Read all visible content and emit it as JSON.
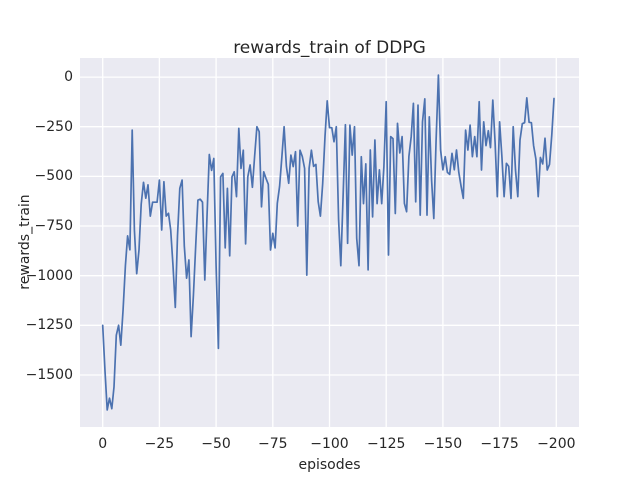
{
  "figure": {
    "title": "rewards_train of DDPG",
    "xlabel": "episodes",
    "ylabel": "rewards_train"
  },
  "chart_data": {
    "type": "line",
    "title": "rewards_train of DDPG",
    "xlabel": "episodes",
    "ylabel": "rewards_train",
    "legend_position": "none",
    "grid": true,
    "style": {
      "axes_bg": "#eaeaf2",
      "fig_bg": "#ffffff",
      "grid_color": "#ffffff",
      "text_color": "#262626",
      "line_color": "#4c72b0"
    },
    "xticks": [
      0,
      25,
      50,
      75,
      100,
      125,
      150,
      175,
      200
    ],
    "yticks": [
      0,
      -250,
      -500,
      -750,
      -1000,
      -1250,
      -1500
    ],
    "xlim": [
      -10,
      210
    ],
    "ylim": [
      -1762,
      96
    ],
    "x_start": 0,
    "x_step": 1,
    "series": [
      {
        "name": "rewards_train",
        "color": "#4c72b0",
        "values": [
          -1250,
          -1480,
          -1676,
          -1617,
          -1670,
          -1560,
          -1300,
          -1250,
          -1350,
          -1170,
          -950,
          -800,
          -870,
          -267,
          -770,
          -990,
          -870,
          -640,
          -530,
          -610,
          -543,
          -700,
          -630,
          -630,
          -630,
          -519,
          -770,
          -527,
          -700,
          -686,
          -770,
          -950,
          -1160,
          -800,
          -560,
          -519,
          -850,
          -1013,
          -921,
          -1307,
          -1100,
          -850,
          -620,
          -615,
          -630,
          -1022,
          -703,
          -390,
          -470,
          -410,
          -950,
          -1366,
          -502,
          -485,
          -860,
          -560,
          -900,
          -502,
          -477,
          -602,
          -258,
          -460,
          -368,
          -840,
          -502,
          -443,
          -555,
          -400,
          -250,
          -275,
          -653,
          -477,
          -510,
          -540,
          -871,
          -787,
          -860,
          -636,
          -550,
          -400,
          -250,
          -450,
          -535,
          -393,
          -451,
          -376,
          -750,
          -368,
          -400,
          -460,
          -997,
          -460,
          -368,
          -450,
          -440,
          -628,
          -700,
          -535,
          -300,
          -120,
          -255,
          -255,
          -326,
          -250,
          -720,
          -950,
          -600,
          -240,
          -837,
          -242,
          -393,
          -250,
          -812,
          -950,
          -401,
          -637,
          -437,
          -971,
          -367,
          -704,
          -317,
          -637,
          -467,
          -637,
          -450,
          -124,
          -896,
          -300,
          -310,
          -687,
          -233,
          -382,
          -300,
          -636,
          -678,
          -400,
          -300,
          -132,
          -628,
          -141,
          -695,
          -225,
          -110,
          -695,
          -200,
          -520,
          -712,
          -317,
          10,
          -367,
          -467,
          -401,
          -480,
          -490,
          -384,
          -467,
          -367,
          -480,
          -550,
          -611,
          -267,
          -367,
          -242,
          -401,
          -300,
          -401,
          -124,
          -468,
          -225,
          -345,
          -270,
          -355,
          -116,
          -330,
          -602,
          -225,
          -401,
          -602,
          -434,
          -450,
          -611,
          -250,
          -468,
          -602,
          -317,
          -235,
          -230,
          -105,
          -228,
          -230,
          -345,
          -413,
          -602,
          -405,
          -437,
          -308,
          -468,
          -440,
          -290,
          -108
        ]
      }
    ]
  }
}
